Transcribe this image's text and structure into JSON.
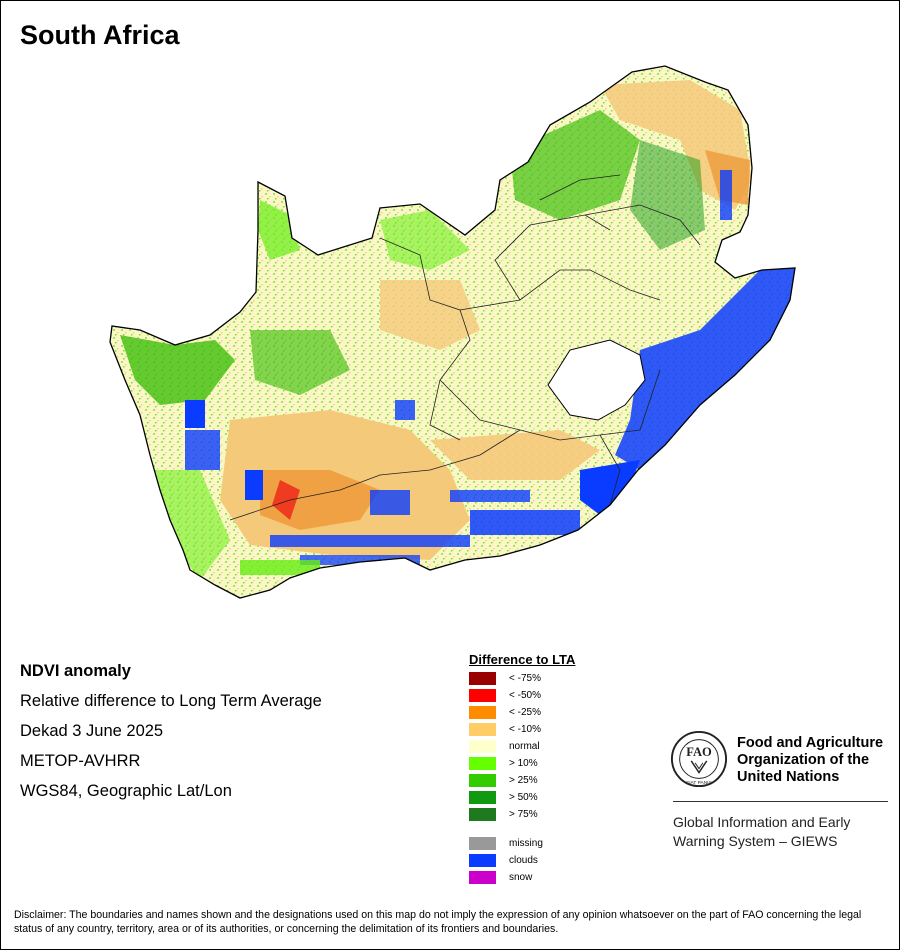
{
  "title": "South Africa",
  "info": {
    "product": "NDVI anomaly",
    "description": "Relative difference to Long Term Average",
    "period": "Dekad 3 June 2025",
    "sensor": "METOP-AVHRR",
    "projection": "WGS84, Geographic Lat/Lon"
  },
  "legend": {
    "title": "Difference to LTA",
    "classes": [
      {
        "label": "< -75%",
        "color": "#990000"
      },
      {
        "label": "< -50%",
        "color": "#ff0000"
      },
      {
        "label": "< -25%",
        "color": "#ff8c00"
      },
      {
        "label": "< -10%",
        "color": "#ffcc66"
      },
      {
        "label": "normal",
        "color": "#ffffcc"
      },
      {
        "label": "> 10%",
        "color": "#66ff00"
      },
      {
        "label": "> 25%",
        "color": "#33cc00"
      },
      {
        "label": "> 50%",
        "color": "#119911"
      },
      {
        "label": "> 75%",
        "color": "#1f7a1f"
      }
    ],
    "extras": [
      {
        "label": "missing",
        "color": "#999999"
      },
      {
        "label": "clouds",
        "color": "#0a3cff"
      },
      {
        "label": "snow",
        "color": "#cc00cc"
      }
    ]
  },
  "organization": {
    "name_line1": "Food and Agriculture",
    "name_line2": "Organization of the",
    "name_line3": "United Nations",
    "system_line1": "Global Information and Early",
    "system_line2": "Warning System – GIEWS",
    "logo_text": "FIAT PANIS",
    "logo_letters": "FAO"
  },
  "disclaimer": "Disclaimer: The boundaries and names shown and the designations used on this map do not imply the expression of any opinion whatsoever on the part of FAO concerning the legal status of any country, territory, area or of its authorities, or concerning the delimitation of its frontiers and boundaries.",
  "map_colors": {
    "normal": "#fbf6c8",
    "dry": "#f5c97a",
    "very_dry": "#ee9a3a",
    "green_light": "#66ee11",
    "green": "#33bb00",
    "green_dark": "#169a16",
    "clouds": "#0a3cff",
    "red": "#ee1111",
    "border": "#000000"
  }
}
